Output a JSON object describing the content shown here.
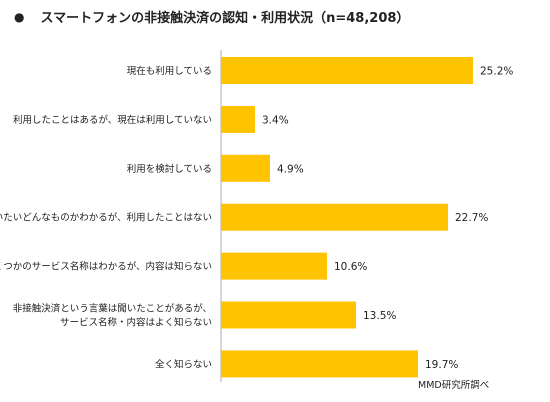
{
  "header": {
    "bullet": "●",
    "title": "スマートフォンの非接触決済の認知・利用状況（n=48,208）"
  },
  "source": "MMD研究所調べ",
  "chart_data": {
    "type": "bar",
    "orientation": "horizontal",
    "title": "スマートフォンの非接触決済の認知・利用状況（n=48,208）",
    "categories": [
      [
        "現在も利用している"
      ],
      [
        "利用したことはあるが、現在は利用していない"
      ],
      [
        "利用を検討している"
      ],
      [
        "だいたいどんなものかわかるが、利用したことはない"
      ],
      [
        "いくつかのサービス名称はわかるが、内容は知らない"
      ],
      [
        "非接触決済という言葉は聞いたことがあるが、",
        "サービス名称・内容はよく知らない"
      ],
      [
        "全く知らない"
      ]
    ],
    "values": [
      25.2,
      3.4,
      4.9,
      22.7,
      10.6,
      13.5,
      19.7
    ],
    "value_labels": [
      "25.2%",
      "3.4%",
      "4.9%",
      "22.7%",
      "10.6%",
      "13.5%",
      "19.7%"
    ],
    "xlim": [
      0,
      26
    ],
    "bar_color": "#FFC300",
    "grid": false,
    "legend": "none"
  }
}
